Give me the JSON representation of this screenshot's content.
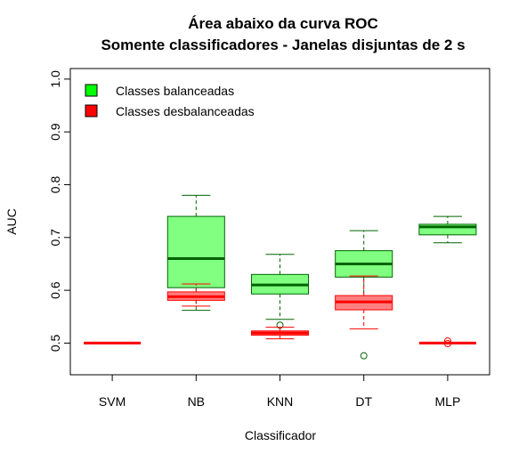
{
  "chart_data": {
    "type": "box",
    "title": "Área abaixo da curva ROC",
    "subtitle": "Somente classificadores - Janelas disjuntas de 2 s",
    "xlabel": "Classificador",
    "ylabel": "AUC",
    "ylim": [
      0.44,
      1.02
    ],
    "yticks": [
      0.5,
      0.6,
      0.7,
      0.8,
      0.9,
      1.0
    ],
    "ytick_labels": [
      "0.5",
      "0.6",
      "0.7",
      "0.8",
      "0.9",
      "1.0"
    ],
    "categories": [
      "SVM",
      "NB",
      "KNN",
      "DT",
      "MLP"
    ],
    "legend_position": "top-left",
    "series": [
      {
        "name": "Classes balanceadas",
        "color": "#00ff00",
        "fill": "#80ff80",
        "stroke": "#006400",
        "boxes": [
          null,
          {
            "min": 0.562,
            "q1": 0.605,
            "median": 0.66,
            "q3": 0.74,
            "max": 0.78,
            "outliers": []
          },
          {
            "min": 0.545,
            "q1": 0.593,
            "median": 0.61,
            "q3": 0.63,
            "max": 0.668,
            "outliers": [
              0.534
            ]
          },
          {
            "min": 0.585,
            "q1": 0.625,
            "median": 0.65,
            "q3": 0.675,
            "max": 0.713,
            "outliers": [
              0.476
            ]
          },
          {
            "min": 0.69,
            "q1": 0.705,
            "median": 0.72,
            "q3": 0.725,
            "max": 0.74,
            "outliers": []
          }
        ]
      },
      {
        "name": "Classes desbalanceadas",
        "color": "#ff0000",
        "fill": "#ff8080",
        "stroke": "#ff0000",
        "boxes": [
          {
            "min": 0.5,
            "q1": 0.5,
            "median": 0.5,
            "q3": 0.5,
            "max": 0.5,
            "outliers": []
          },
          {
            "min": 0.57,
            "q1": 0.581,
            "median": 0.588,
            "q3": 0.597,
            "max": 0.612,
            "outliers": []
          },
          {
            "min": 0.508,
            "q1": 0.515,
            "median": 0.519,
            "q3": 0.523,
            "max": 0.53,
            "outliers": []
          },
          {
            "min": 0.527,
            "q1": 0.563,
            "median": 0.578,
            "q3": 0.59,
            "max": 0.627,
            "outliers": []
          },
          {
            "min": 0.5,
            "q1": 0.5,
            "median": 0.5,
            "q3": 0.5,
            "max": 0.5,
            "outliers": [
              0.504,
              0.499
            ]
          }
        ]
      }
    ]
  }
}
